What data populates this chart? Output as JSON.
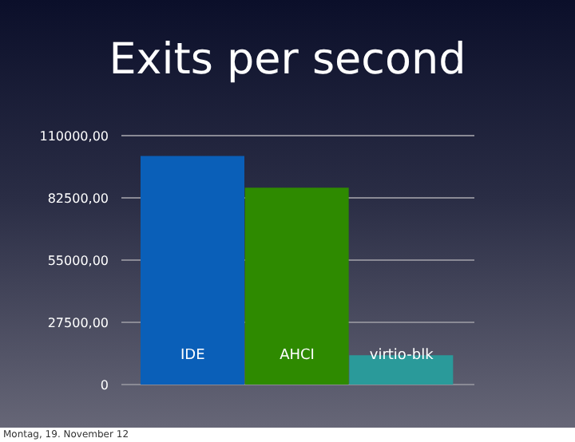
{
  "chart_data": {
    "type": "bar",
    "title": "Exits per second",
    "categories": [
      "IDE",
      "AHCI",
      "virtio-blk"
    ],
    "values": [
      101000,
      87000,
      13000
    ],
    "colors": [
      "#0a5fb8",
      "#2e8a00",
      "#2a9a9a"
    ],
    "ylim": [
      0,
      110000
    ],
    "yticks": [
      0,
      {
        "value": 27500,
        "label": "27500,00"
      },
      {
        "value": 55000,
        "label": "55000,00"
      },
      {
        "value": 82500,
        "label": "82500,00"
      },
      {
        "value": 110000,
        "label": "110000,00"
      }
    ],
    "grid": "y",
    "annotations": [
      "Montag, 19. November 12"
    ]
  }
}
